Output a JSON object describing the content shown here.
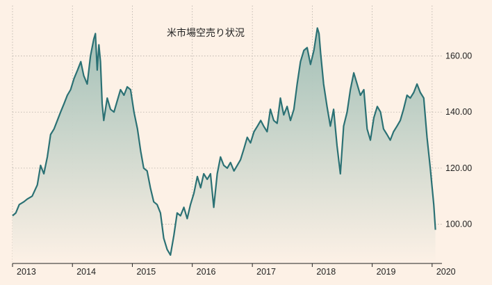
{
  "chart_data": {
    "type": "area",
    "title": "米市場空売り状況",
    "xlabel": "",
    "ylabel": "",
    "x_start": "2013-01",
    "x_end": "2020-03",
    "ylim": [
      86,
      178
    ],
    "grid": true,
    "y_ticks": [
      100,
      120,
      140,
      160
    ],
    "y_tick_labels": [
      "100.00",
      "120.00",
      "140.00",
      "160.00"
    ],
    "x_ticks": [
      "2013",
      "2014",
      "2015",
      "2016",
      "2017",
      "2018",
      "2019",
      "2020"
    ],
    "colors": {
      "line": "#2b7174",
      "fill_top": "#9dbdb4",
      "fill_bottom": "#fdf1e6",
      "grid": "#b5aea6",
      "background": "#fdf1e6"
    },
    "series": [
      {
        "points": [
          [
            "2013-01-01",
            103
          ],
          [
            "2013-01-21",
            104
          ],
          [
            "2013-02-11",
            107
          ],
          [
            "2013-03-11",
            108
          ],
          [
            "2013-04-01",
            109
          ],
          [
            "2013-05-01",
            110
          ],
          [
            "2013-06-01",
            114
          ],
          [
            "2013-06-21",
            121
          ],
          [
            "2013-07-11",
            118
          ],
          [
            "2013-08-01",
            124
          ],
          [
            "2013-08-21",
            132
          ],
          [
            "2013-09-11",
            134
          ],
          [
            "2013-10-01",
            137
          ],
          [
            "2013-10-21",
            140
          ],
          [
            "2013-11-11",
            143
          ],
          [
            "2013-12-01",
            146
          ],
          [
            "2013-12-21",
            148
          ],
          [
            "2014-01-11",
            152
          ],
          [
            "2014-02-01",
            155
          ],
          [
            "2014-02-21",
            158
          ],
          [
            "2014-03-11",
            153
          ],
          [
            "2014-04-01",
            150
          ],
          [
            "2014-04-21",
            160
          ],
          [
            "2014-05-11",
            166
          ],
          [
            "2014-05-21",
            168
          ],
          [
            "2014-06-01",
            155
          ],
          [
            "2014-06-11",
            164
          ],
          [
            "2014-06-21",
            158
          ],
          [
            "2014-07-01",
            143
          ],
          [
            "2014-07-11",
            137
          ],
          [
            "2014-08-01",
            145
          ],
          [
            "2014-08-21",
            141
          ],
          [
            "2014-09-11",
            140
          ],
          [
            "2014-10-01",
            144
          ],
          [
            "2014-10-21",
            148
          ],
          [
            "2014-11-11",
            146
          ],
          [
            "2014-12-01",
            149
          ],
          [
            "2014-12-21",
            148
          ],
          [
            "2015-01-11",
            140
          ],
          [
            "2015-02-01",
            134
          ],
          [
            "2015-02-21",
            126
          ],
          [
            "2015-03-11",
            120
          ],
          [
            "2015-04-01",
            119
          ],
          [
            "2015-04-21",
            113
          ],
          [
            "2015-05-11",
            108
          ],
          [
            "2015-06-01",
            107
          ],
          [
            "2015-06-21",
            104
          ],
          [
            "2015-07-11",
            95
          ],
          [
            "2015-08-01",
            91
          ],
          [
            "2015-08-21",
            89
          ],
          [
            "2015-09-11",
            96
          ],
          [
            "2015-10-01",
            104
          ],
          [
            "2015-10-21",
            103
          ],
          [
            "2015-11-11",
            106
          ],
          [
            "2015-12-01",
            102
          ],
          [
            "2015-12-21",
            107
          ],
          [
            "2016-01-11",
            111
          ],
          [
            "2016-02-01",
            117
          ],
          [
            "2016-02-21",
            113
          ],
          [
            "2016-03-11",
            118
          ],
          [
            "2016-04-01",
            116
          ],
          [
            "2016-04-21",
            118
          ],
          [
            "2016-05-11",
            106
          ],
          [
            "2016-06-01",
            118
          ],
          [
            "2016-06-21",
            124
          ],
          [
            "2016-07-11",
            121
          ],
          [
            "2016-08-01",
            120
          ],
          [
            "2016-08-21",
            122
          ],
          [
            "2016-09-11",
            119
          ],
          [
            "2016-10-01",
            121
          ],
          [
            "2016-10-21",
            123
          ],
          [
            "2016-11-11",
            127
          ],
          [
            "2016-12-01",
            131
          ],
          [
            "2016-12-21",
            129
          ],
          [
            "2017-01-11",
            133
          ],
          [
            "2017-02-01",
            135
          ],
          [
            "2017-02-21",
            137
          ],
          [
            "2017-03-11",
            135
          ],
          [
            "2017-04-01",
            133
          ],
          [
            "2017-04-21",
            141
          ],
          [
            "2017-05-11",
            137
          ],
          [
            "2017-06-01",
            136
          ],
          [
            "2017-06-21",
            145
          ],
          [
            "2017-07-11",
            139
          ],
          [
            "2017-08-01",
            142
          ],
          [
            "2017-08-21",
            137
          ],
          [
            "2017-09-11",
            141
          ],
          [
            "2017-10-01",
            150
          ],
          [
            "2017-10-21",
            158
          ],
          [
            "2017-11-11",
            162
          ],
          [
            "2017-12-01",
            163
          ],
          [
            "2017-12-21",
            157
          ],
          [
            "2018-01-11",
            162
          ],
          [
            "2018-02-01",
            170
          ],
          [
            "2018-02-11",
            168
          ],
          [
            "2018-02-21",
            161
          ],
          [
            "2018-03-11",
            150
          ],
          [
            "2018-04-01",
            142
          ],
          [
            "2018-04-21",
            135
          ],
          [
            "2018-05-11",
            141
          ],
          [
            "2018-06-01",
            128
          ],
          [
            "2018-06-21",
            118
          ],
          [
            "2018-07-11",
            135
          ],
          [
            "2018-08-01",
            140
          ],
          [
            "2018-08-21",
            148
          ],
          [
            "2018-09-11",
            154
          ],
          [
            "2018-10-01",
            150
          ],
          [
            "2018-10-21",
            146
          ],
          [
            "2018-11-11",
            148
          ],
          [
            "2018-12-01",
            134
          ],
          [
            "2018-12-21",
            130
          ],
          [
            "2019-01-11",
            138
          ],
          [
            "2019-02-01",
            142
          ],
          [
            "2019-02-21",
            140
          ],
          [
            "2019-03-11",
            134
          ],
          [
            "2019-04-01",
            132
          ],
          [
            "2019-04-21",
            130
          ],
          [
            "2019-05-11",
            133
          ],
          [
            "2019-06-01",
            135
          ],
          [
            "2019-06-21",
            137
          ],
          [
            "2019-07-11",
            141
          ],
          [
            "2019-08-01",
            146
          ],
          [
            "2019-08-21",
            145
          ],
          [
            "2019-09-11",
            147
          ],
          [
            "2019-10-01",
            150
          ],
          [
            "2019-10-21",
            147
          ],
          [
            "2019-11-11",
            145
          ],
          [
            "2019-12-01",
            131
          ],
          [
            "2019-12-21",
            120
          ],
          [
            "2020-01-11",
            107
          ],
          [
            "2020-01-21",
            98
          ]
        ]
      }
    ]
  }
}
